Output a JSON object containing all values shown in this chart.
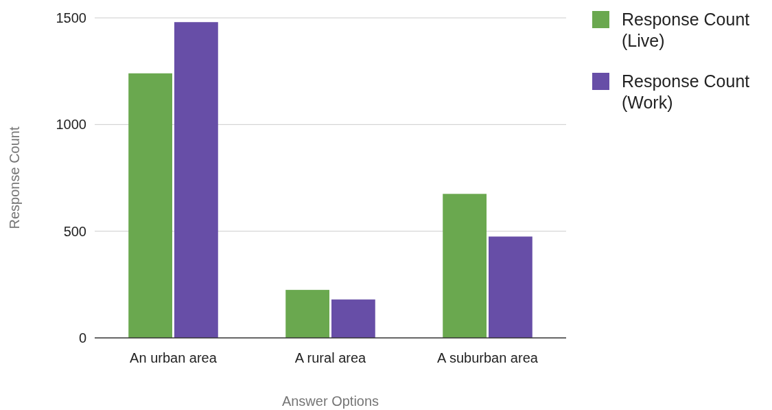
{
  "chart_data": {
    "type": "bar",
    "xlabel": "Answer Options",
    "ylabel": "Response Count",
    "categories": [
      "An urban area",
      "A rural area",
      "A suburban area"
    ],
    "series": [
      {
        "name": "Response Count (Live)",
        "color": "#6aa84f",
        "values": [
          1240,
          225,
          675
        ]
      },
      {
        "name": "Response Count (Work)",
        "color": "#674ea7",
        "values": [
          1480,
          180,
          475
        ]
      }
    ],
    "ylim": [
      0,
      1500
    ],
    "yticks": [
      0,
      500,
      1000,
      1500
    ],
    "grid": "y",
    "legend": "right"
  }
}
